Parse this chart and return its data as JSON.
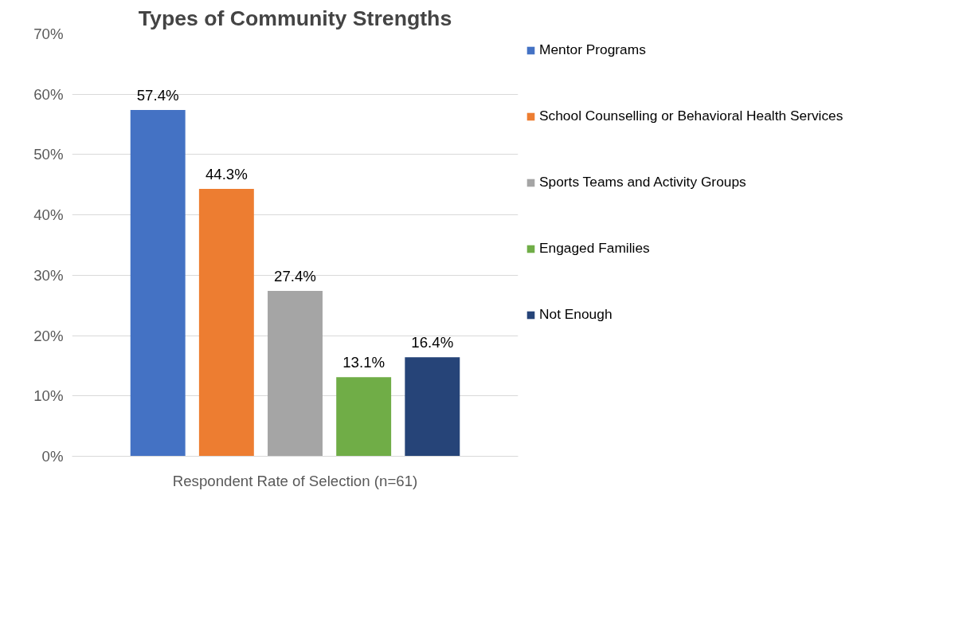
{
  "chart_data": {
    "type": "bar",
    "title": "Types of Community Strengths",
    "categories": [
      "Respondent Rate of Selection (n=61)"
    ],
    "series": [
      {
        "name": "Mentor Programs",
        "color": "#4472c4",
        "values": [
          57.4
        ],
        "value_labels": [
          "57.4%"
        ]
      },
      {
        "name": "School Counselling or Behavioral Health Services",
        "color": "#ed7d31",
        "values": [
          44.3
        ],
        "value_labels": [
          "44.3%"
        ]
      },
      {
        "name": "Sports Teams and Activity Groups",
        "color": "#a5a5a5",
        "values": [
          27.4
        ],
        "value_labels": [
          "27.4%"
        ]
      },
      {
        "name": "Engaged Families",
        "color": "#70ad47",
        "values": [
          13.1
        ],
        "value_labels": [
          "13.1%"
        ]
      },
      {
        "name": "Not Enough",
        "color": "#264478",
        "values": [
          16.4
        ],
        "value_labels": [
          "16.4%"
        ]
      }
    ],
    "ylim": [
      0,
      70
    ],
    "yticks": [
      {
        "value": 0,
        "label": "0%"
      },
      {
        "value": 10,
        "label": "10%"
      },
      {
        "value": 20,
        "label": "20%"
      },
      {
        "value": 30,
        "label": "30%"
      },
      {
        "value": 40,
        "label": "40%"
      },
      {
        "value": 50,
        "label": "50%"
      },
      {
        "value": 60,
        "label": "60%"
      },
      {
        "value": 70,
        "label": "70%"
      }
    ],
    "grid": "y",
    "legend": "right"
  }
}
